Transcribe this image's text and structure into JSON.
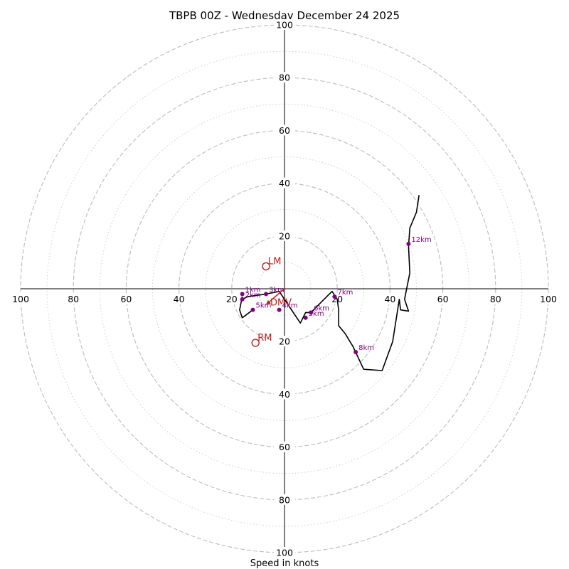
{
  "chart_data": {
    "type": "hodograph",
    "title": "TBPB 00Z - Wednesday December 24 2025",
    "xlabel": "Speed in knots",
    "ring_max": 100,
    "major_rings": [
      20,
      40,
      60,
      80,
      100
    ],
    "minor_rings": [
      10,
      30,
      50,
      70,
      90
    ],
    "x_ticks": [
      "100",
      "80",
      "60",
      "40",
      "20",
      "20",
      "40",
      "60",
      "80",
      "100"
    ],
    "x_tick_values": [
      -100,
      -80,
      -60,
      -40,
      -20,
      20,
      40,
      60,
      80,
      100
    ],
    "y_ticks": [
      "100",
      "80",
      "60",
      "40",
      "20",
      "20",
      "40",
      "60",
      "80",
      "100"
    ],
    "y_tick_values": [
      100,
      80,
      60,
      40,
      20,
      -20,
      -40,
      -60,
      -80,
      -100
    ],
    "colors": {
      "trace": "#000000",
      "height_points": "#800080",
      "motion": "#c02020",
      "grid": "#bdbdbd"
    },
    "trace_uv": [
      [
        -16,
        -4
      ],
      [
        -14,
        -3
      ],
      [
        -7,
        -2
      ],
      [
        -2,
        -1
      ],
      [
        2,
        -7
      ],
      [
        6,
        -13
      ],
      [
        8,
        -9
      ],
      [
        10,
        -9
      ],
      [
        14,
        -5
      ],
      [
        18,
        -1
      ],
      [
        20,
        -4
      ],
      [
        20.5,
        -8
      ],
      [
        20.5,
        -14
      ],
      [
        23,
        -17
      ],
      [
        26,
        -22
      ],
      [
        30,
        -30.5
      ],
      [
        37,
        -31
      ],
      [
        41,
        -20
      ],
      [
        43.5,
        -4
      ],
      [
        44,
        -8
      ],
      [
        47,
        -8.5
      ],
      [
        45.5,
        -4
      ],
      [
        47.5,
        6
      ],
      [
        47,
        16
      ],
      [
        47.5,
        23
      ],
      [
        50,
        29
      ],
      [
        51,
        35.5
      ]
    ],
    "loop_uv": [
      [
        -16,
        -3
      ],
      [
        -17,
        -8
      ],
      [
        -16,
        -11
      ],
      [
        -12,
        -8
      ]
    ],
    "height_points": [
      {
        "label": "1km",
        "u": -16,
        "v": -2
      },
      {
        "label": "2km",
        "u": -16,
        "v": -4
      },
      {
        "label": "3km",
        "u": -7,
        "v": -2
      },
      {
        "label": "4km",
        "u": -2,
        "v": -8
      },
      {
        "label": "5km",
        "u": -12,
        "v": -8
      },
      {
        "label": "5km",
        "u": 8,
        "v": -11
      },
      {
        "label": "6km",
        "u": 10,
        "v": -9
      },
      {
        "label": "7km",
        "u": 19,
        "v": -3
      },
      {
        "label": "8km",
        "u": 27,
        "v": -24
      },
      {
        "label": "12km",
        "u": 47,
        "v": 17
      }
    ],
    "storm_motion": [
      {
        "label": "LM",
        "u": -7,
        "v": 8.5
      },
      {
        "label": "RM",
        "u": -11,
        "v": -20.5
      }
    ],
    "mean_wind": {
      "label": "DMV",
      "u": -7,
      "v": -6,
      "tail_u": 0,
      "tail_v": 0
    }
  }
}
